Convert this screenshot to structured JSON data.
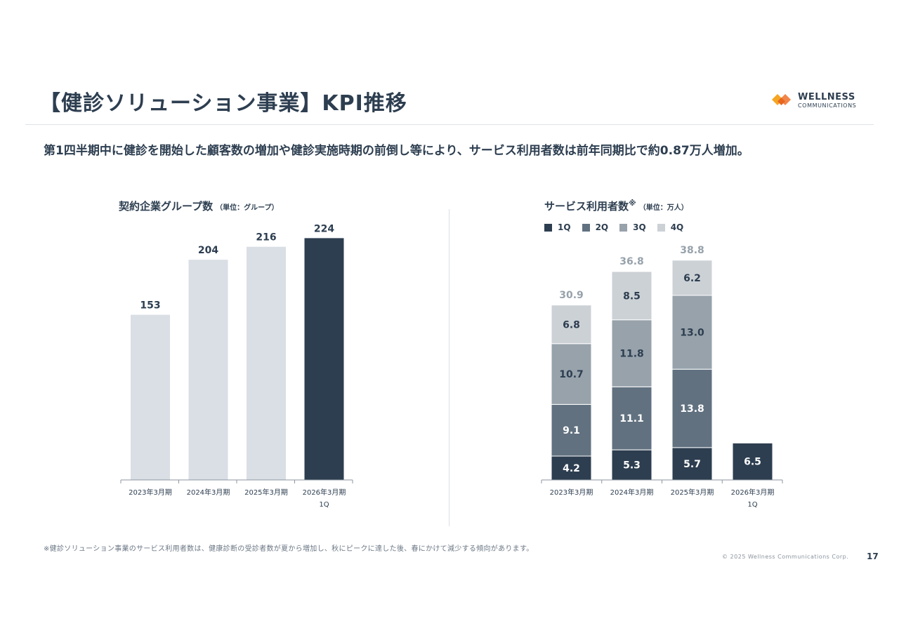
{
  "header": {
    "title": "【健診ソリューション事業】KPI推移",
    "logo": {
      "brand": "WELLNESS",
      "sub": "COMMUNICATIONS",
      "colors": [
        "#f5a623",
        "#f07c3a"
      ]
    }
  },
  "summary": "第1四半期中に健診を開始した顧客数の増加や健診実施時期の前倒し等により、サービス利用者数は前年同期比で約0.87万人増加。",
  "left_chart": {
    "title": "契約企業グループ数",
    "unit": "（単位：グループ）"
  },
  "right_chart": {
    "title": "サービス利用者数",
    "note_mark": "※",
    "unit": "（単位：万人）"
  },
  "chart_data": [
    {
      "type": "bar",
      "title": "契約企業グループ数",
      "categories": [
        "2023年3月期",
        "2024年3月期",
        "2025年3月期",
        "2026年3月期\n1Q"
      ],
      "values": [
        153,
        204,
        216,
        224
      ],
      "ylim": [
        0,
        260
      ],
      "grid": false,
      "colors": [
        "#dadfe5",
        "#dadfe5",
        "#dadfe5",
        "#2d3e50"
      ]
    },
    {
      "type": "bar",
      "stacked": true,
      "title": "サービス利用者数",
      "categories": [
        "2023年3月期",
        "2024年3月期",
        "2025年3月期",
        "2026年3月期\n1Q"
      ],
      "series": [
        {
          "name": "1Q",
          "values": [
            4.2,
            5.3,
            5.7,
            6.5
          ],
          "color": "#2d3e50"
        },
        {
          "name": "2Q",
          "values": [
            9.1,
            11.1,
            13.8,
            null
          ],
          "color": "#617180"
        },
        {
          "name": "3Q",
          "values": [
            10.7,
            11.8,
            13.0,
            null
          ],
          "color": "#97a2ab"
        },
        {
          "name": "4Q",
          "values": [
            6.8,
            8.5,
            6.2,
            null
          ],
          "color": "#ccd1d6"
        }
      ],
      "totals": [
        30.9,
        36.8,
        38.8,
        null
      ],
      "legend_position": "top-left",
      "ylim": [
        0,
        45
      ],
      "grid": false
    }
  ],
  "footnote": "※健診ソリューション事業のサービス利用者数は、健康診断の受診者数が夏から増加し、秋にピークに達した後、春にかけて減少する傾向があります。",
  "copyright": "© 2025 Wellness Communications Corp.",
  "page_number": "17"
}
